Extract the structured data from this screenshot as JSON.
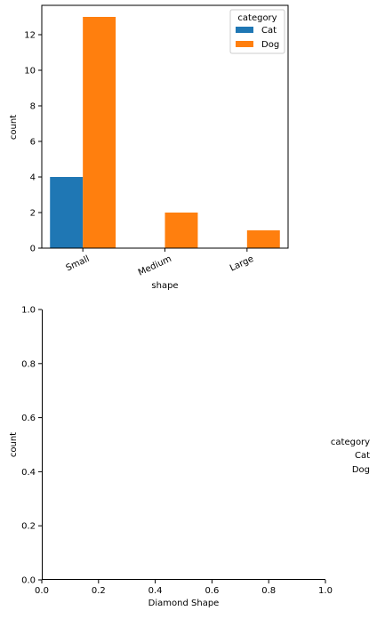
{
  "colors": {
    "Cat": "#1f77b4",
    "Dog": "#ff7f0e"
  },
  "chart_data": [
    {
      "type": "bar",
      "categories": [
        "Small",
        "Medium",
        "Large"
      ],
      "series": [
        {
          "name": "Cat",
          "values": [
            4,
            0,
            0
          ]
        },
        {
          "name": "Dog",
          "values": [
            13,
            2,
            1
          ]
        }
      ],
      "xlabel": "shape",
      "ylabel": "count",
      "ylim": [
        0,
        13.65
      ],
      "yticks": [
        "0",
        "2",
        "4",
        "6",
        "8",
        "10",
        "12"
      ],
      "legend": {
        "title": "category",
        "position": "top-right",
        "items": [
          "Cat",
          "Dog"
        ]
      },
      "grid": false
    },
    {
      "type": "bar",
      "categories": [],
      "series": [],
      "xlabel": "Diamond Shape",
      "ylabel": "count",
      "xlim": [
        0,
        1
      ],
      "ylim": [
        0,
        1
      ],
      "xticks": [
        "0.0",
        "0.2",
        "0.4",
        "0.6",
        "0.8",
        "1.0"
      ],
      "yticks": [
        "0.0",
        "0.2",
        "0.4",
        "0.6",
        "0.8",
        "1.0"
      ],
      "legend": {
        "title": "category",
        "position": "outside-right",
        "items": [
          "Cat",
          "Dog"
        ]
      },
      "grid": false
    }
  ]
}
